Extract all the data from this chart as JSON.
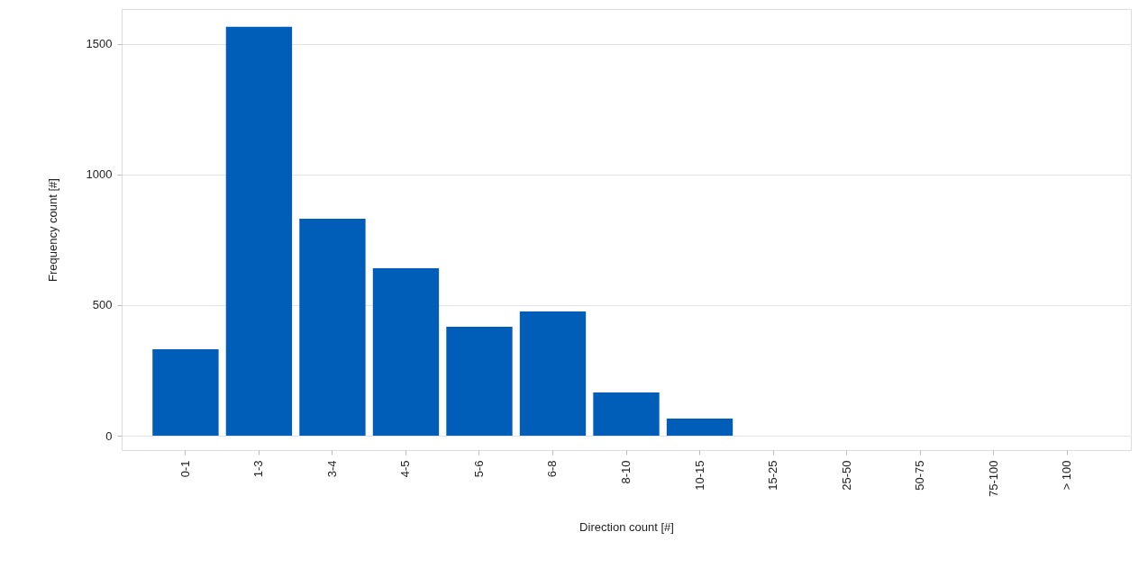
{
  "chart_data": {
    "type": "bar",
    "xlabel": "Direction count [#]",
    "ylabel": "Frequency count [#]",
    "categories": [
      "0-1",
      "1-3",
      "3-4",
      "4-5",
      "5-6",
      "6-8",
      "8-10",
      "10-15",
      "15-25",
      "25-50",
      "50-75",
      "75-100",
      "> 100"
    ],
    "values": [
      331,
      1566,
      831,
      641,
      417,
      476,
      166,
      66,
      0,
      0,
      0,
      0,
      0
    ],
    "color": "#005eb8",
    "ylim": [
      -55,
      1634
    ],
    "yticks": [
      0,
      500,
      1000,
      1500
    ],
    "grid": "y"
  }
}
